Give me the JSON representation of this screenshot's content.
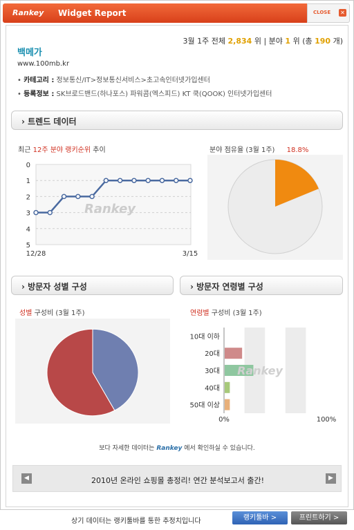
{
  "window": {
    "logo": "Rankey",
    "title": "Widget Report",
    "close_label": "CLOSE"
  },
  "rank": {
    "period": "3월 1주",
    "overall_label": "전체",
    "overall_rank": "2,834",
    "rank_unit": "위",
    "category_label": "분야",
    "category_rank": "1",
    "category_total_prefix": "위 (총",
    "category_total": "190",
    "category_total_suffix": "개)"
  },
  "site": {
    "name": "백메가",
    "url": "www.100mb.kr",
    "category_key": "카테고리 :",
    "category_value": "정보통신/IT>정보통신서비스>초고속인터넷가입센터",
    "reg_key": "등록정보 :",
    "reg_value": "SK브로드밴드(하나포스) 파워콤(엑스피드) KT 쿡(QOOK) 인터넷가입센터"
  },
  "sections": {
    "trend": "트렌드 데이터",
    "gender": "방문자 성별 구성",
    "age": "방문자 연령별 구성"
  },
  "trend_chart": {
    "title_prefix": "최근",
    "title_highlight": "12주 분야 랭키순위",
    "title_suffix": "추이",
    "y_ticks": [
      "0",
      "1",
      "2",
      "3",
      "4",
      "5"
    ],
    "x_start": "12/28",
    "x_end": "3/15"
  },
  "share_chart": {
    "title": "분야 점유율 (3월 1주)",
    "value": "18.8%"
  },
  "gender_chart": {
    "title_highlight": "성별",
    "title_suffix": "구성비 (3월 1주)"
  },
  "age_chart": {
    "title_highlight": "연령별",
    "title_suffix": "구성비 (3월 1주)",
    "x_min": "0%",
    "x_max": "100%"
  },
  "watermark": "Rankey",
  "footer": {
    "more_prefix": "보다 자세한 데이터는",
    "more_logo": "Rankey",
    "more_suffix": "에서 확인하실 수 있습니다.",
    "banner": "2010년 온라인 쇼핑몰 총정리! 연간 분석보고서 출간!",
    "bottom_note": "상기 데이터는 랭키툴바를 통한 추정치입니다",
    "toolbar_button": "랭키툴바 >",
    "print_button": "프린트하기 >"
  },
  "colors": {
    "accent": "#e8522a",
    "trend_line": "#4a6aa0",
    "share_orange": "#f08a10",
    "male": "#6f7fb0",
    "female": "#b84848"
  },
  "chart_data": [
    {
      "type": "line",
      "x": [
        "12/28",
        "",
        "",
        "",
        "",
        "",
        "",
        "",
        "",
        "",
        "",
        "3/15"
      ],
      "values": [
        3,
        3,
        2,
        2,
        2,
        1,
        1,
        1,
        1,
        1,
        1,
        1
      ],
      "ylim": [
        0,
        5
      ],
      "y_inverted": true
    },
    {
      "type": "pie",
      "categories": [
        "분야 점유율",
        ""
      ],
      "values": [
        18.8,
        81.2
      ]
    },
    {
      "type": "pie",
      "values": [
        42,
        58
      ]
    },
    {
      "type": "bar",
      "orientation": "horizontal",
      "categories": [
        "10대 이하",
        "20대",
        "30대",
        "40대",
        "50대 이상"
      ],
      "values": [
        0,
        17,
        28,
        5,
        5
      ],
      "xlim": [
        0,
        100
      ],
      "colors": [
        "#d9a0a0",
        "#cf8a8a",
        "#8fc7a0",
        "#a7c97a",
        "#e8b07a"
      ]
    }
  ]
}
